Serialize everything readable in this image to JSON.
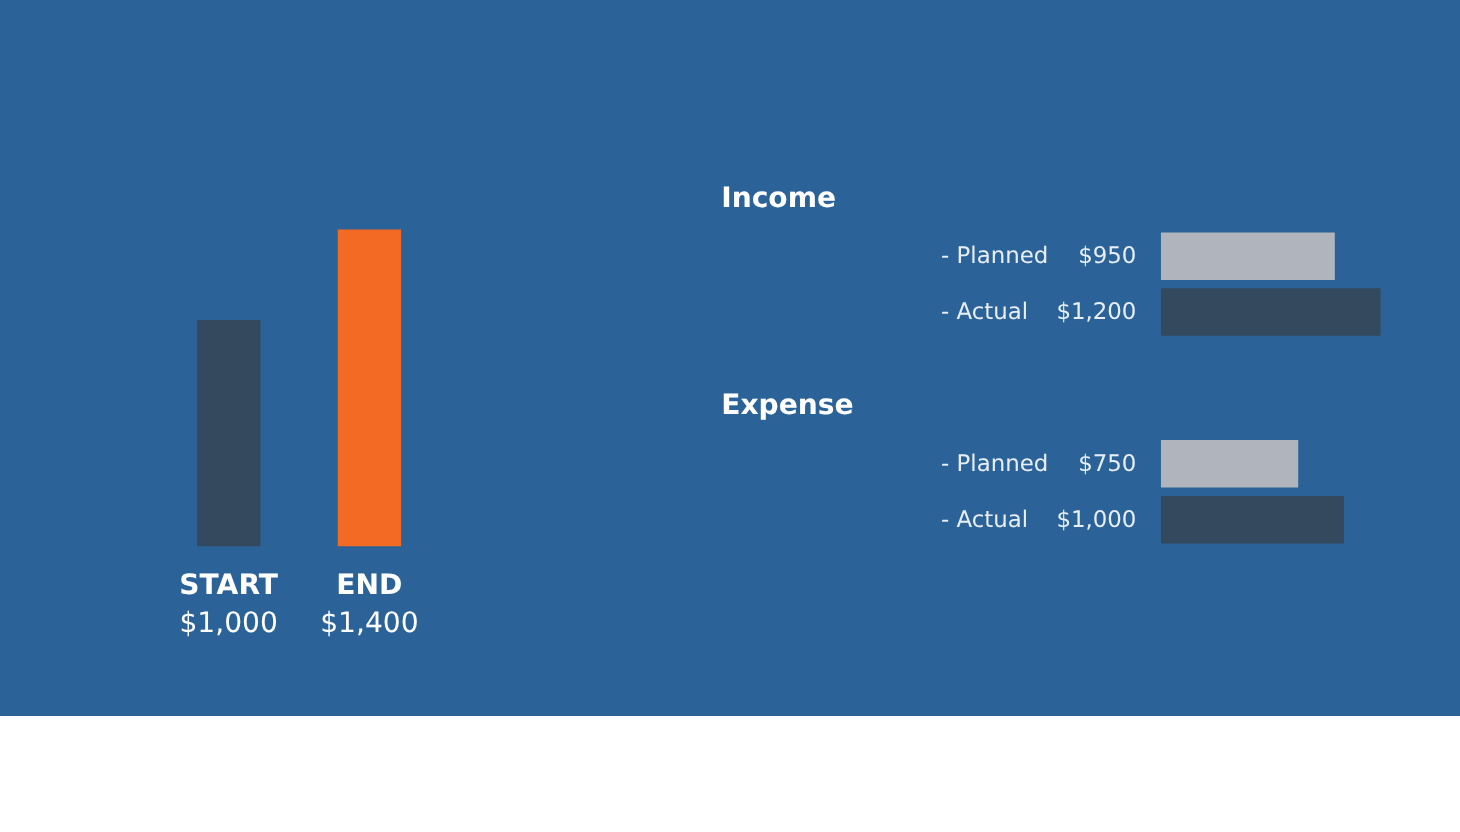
{
  "chart_data": [
    {
      "type": "bar",
      "categories": [
        "START",
        "END"
      ],
      "values": [
        1000,
        1400
      ],
      "colors": [
        "#34495e",
        "#f26a24"
      ],
      "value_labels": [
        "$1,000",
        "$1,400"
      ]
    },
    {
      "type": "bar",
      "orientation": "horizontal",
      "title": "Income",
      "categories": [
        "- Planned",
        "- Actual"
      ],
      "values": [
        950,
        1200
      ],
      "colors": [
        "#b0b5bd",
        "#34495e"
      ],
      "value_labels": [
        "$950",
        "$1,200"
      ]
    },
    {
      "type": "bar",
      "orientation": "horizontal",
      "title": "Expense",
      "categories": [
        "- Planned",
        "- Actual"
      ],
      "values": [
        750,
        1000
      ],
      "colors": [
        "#b0b5bd",
        "#34495e"
      ],
      "value_labels": [
        "$750",
        "$1,000"
      ]
    }
  ]
}
